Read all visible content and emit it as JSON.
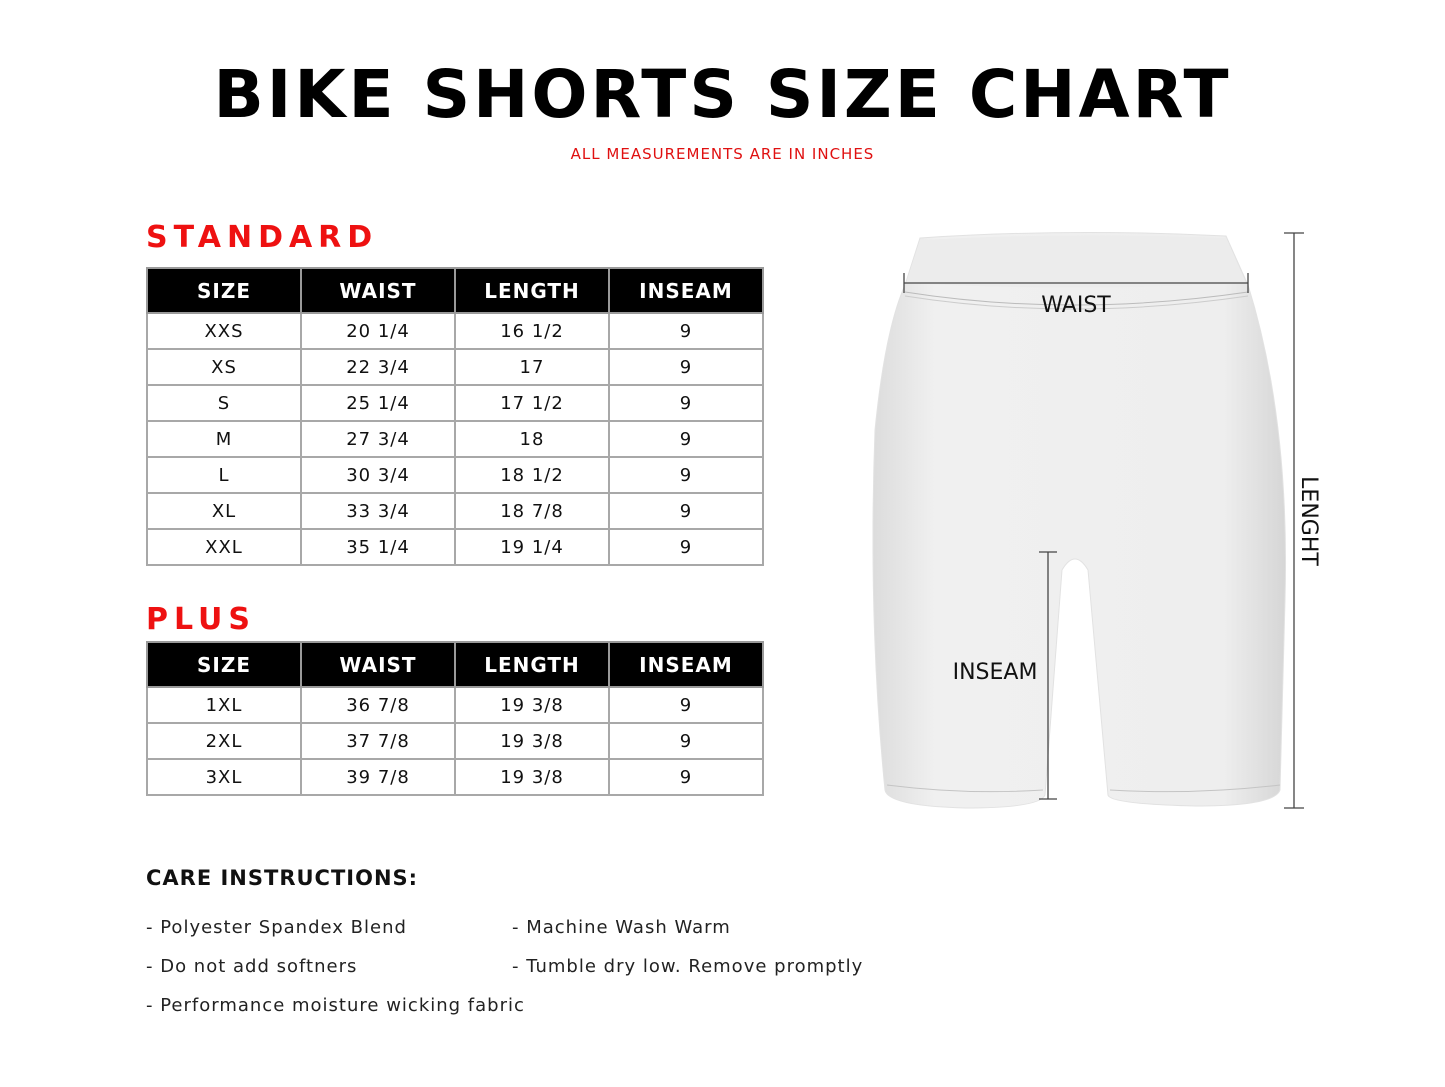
{
  "header": {
    "title": "BIKE SHORTS SIZE CHART",
    "subtitle": "ALL MEASUREMENTS ARE IN INCHES"
  },
  "colors": {
    "accent": "#ee1111",
    "header_bg": "#000000"
  },
  "standard": {
    "label": "STANDARD",
    "columns": [
      "SIZE",
      "WAIST",
      "LENGTH",
      "INSEAM"
    ],
    "rows": [
      [
        "XXS",
        "20 1/4",
        "16 1/2",
        "9"
      ],
      [
        "XS",
        "22 3/4",
        "17",
        "9"
      ],
      [
        "S",
        "25 1/4",
        "17 1/2",
        "9"
      ],
      [
        "M",
        "27 3/4",
        "18",
        "9"
      ],
      [
        "L",
        "30 3/4",
        "18 1/2",
        "9"
      ],
      [
        "XL",
        "33 3/4",
        "18 7/8",
        "9"
      ],
      [
        "XXL",
        "35 1/4",
        "19 1/4",
        "9"
      ]
    ]
  },
  "plus": {
    "label": "PLUS",
    "columns": [
      "SIZE",
      "WAIST",
      "LENGTH",
      "INSEAM"
    ],
    "rows": [
      [
        "1XL",
        "36 7/8",
        "19 3/8",
        "9"
      ],
      [
        "2XL",
        "37 7/8",
        "19 3/8",
        "9"
      ],
      [
        "3XL",
        "39 7/8",
        "19 3/8",
        "9"
      ]
    ]
  },
  "diagram": {
    "waist": "WAIST",
    "inseam": "INSEAM",
    "length": "LENGHT"
  },
  "care": {
    "title": "CARE INSTRUCTIONS:",
    "items": [
      "- Polyester Spandex Blend",
      "- Machine Wash Warm",
      "- Do not add softners",
      "- Tumble dry low. Remove promptly",
      "- Performance moisture wicking fabric"
    ]
  }
}
